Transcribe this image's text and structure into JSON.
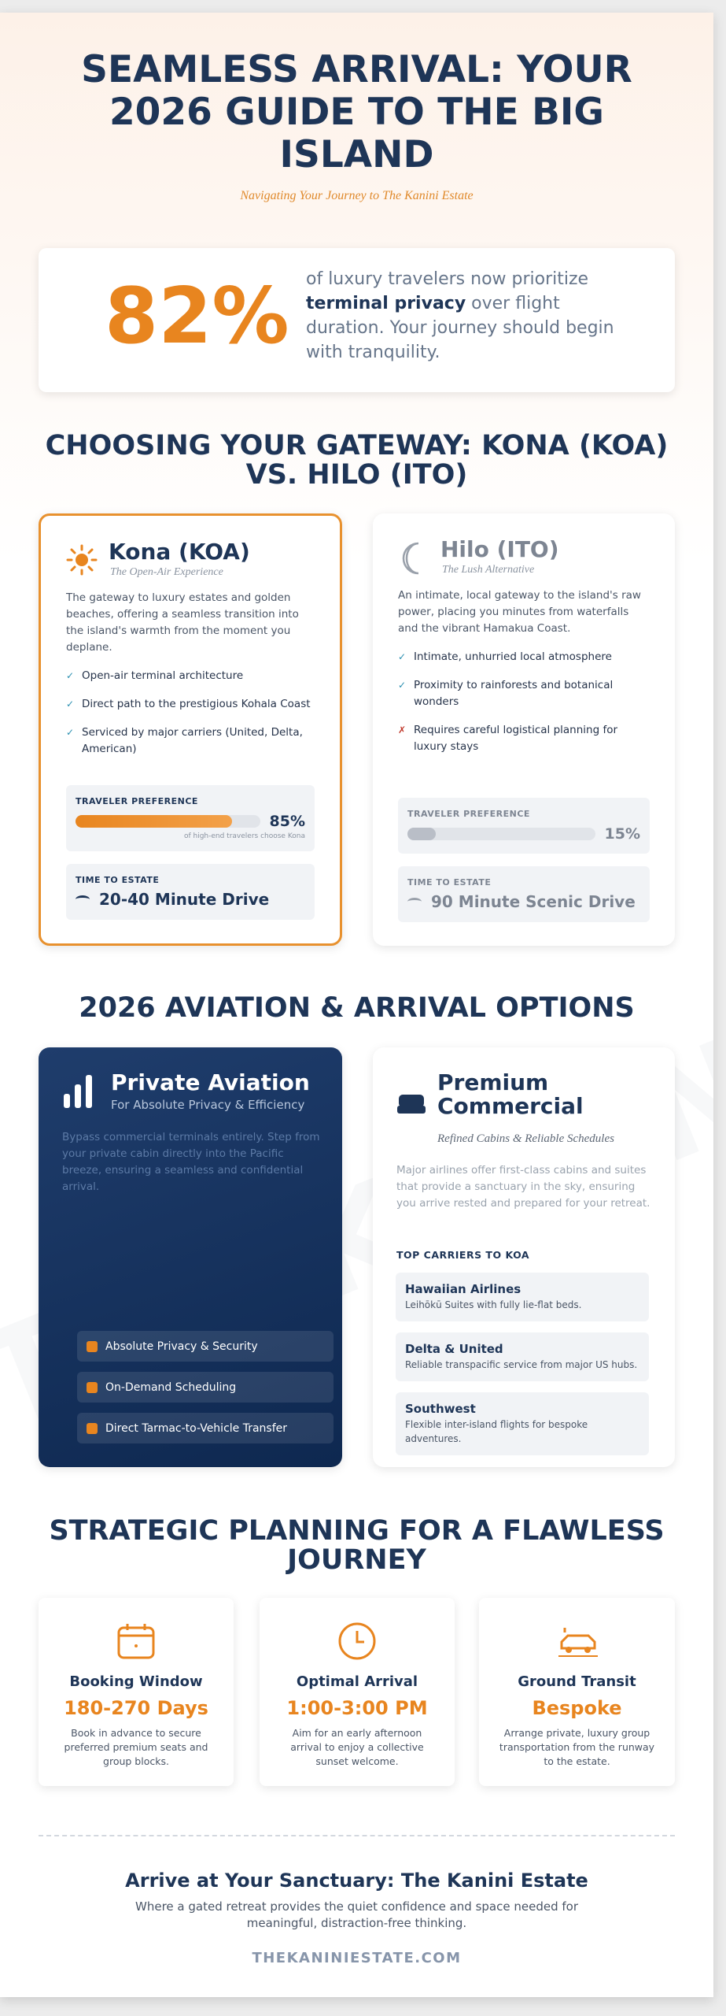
{
  "watermark": "THE KANINI ESTATE",
  "header": {
    "title": "SEAMLESS ARRIVAL: YOUR 2026 GUIDE TO THE BIG ISLAND",
    "subtitle": "Navigating Your Journey to The Kanini Estate"
  },
  "stat": {
    "value": "82%",
    "text_before": "of luxury travelers now prioritize",
    "emphasis": "terminal privacy",
    "text_after": "over flight duration. Your journey should begin with tranquility."
  },
  "gateway": {
    "heading": "CHOOSING YOUR GATEWAY: KONA (KOA) VS. HILO (ITO)",
    "airports": [
      {
        "name": "Kona (KOA)",
        "tagline": "The Open-Air Experience",
        "description": "The gateway to luxury estates and golden beaches, offering a seamless transition into the island's warmth from the moment you deplane.",
        "features": [
          {
            "text": "Open-air terminal architecture",
            "positive": true
          },
          {
            "text": "Direct path to the prestigious Kohala Coast",
            "positive": true
          },
          {
            "text": "Serviced by major carriers (United, Delta, American)",
            "positive": true
          }
        ],
        "preference_label": "TRAVELER PREFERENCE",
        "preference": "85%",
        "preference_note": "of high-end travelers choose Kona",
        "time_label": "TIME TO ESTATE",
        "time": "20-40 Minute Drive"
      },
      {
        "name": "Hilo (ITO)",
        "tagline": "The Lush Alternative",
        "description": "An intimate, local gateway to the island's raw power, placing you minutes from waterfalls and the vibrant Hamakua Coast.",
        "features": [
          {
            "text": "Intimate, unhurried local atmosphere",
            "positive": true
          },
          {
            "text": "Proximity to rainforests and botanical wonders",
            "positive": true
          },
          {
            "text": "Requires careful logistical planning for luxury stays",
            "positive": false
          }
        ],
        "preference_label": "TRAVELER PREFERENCE",
        "preference": "15%",
        "time_label": "TIME TO ESTATE",
        "time": "90 Minute Scenic Drive"
      }
    ]
  },
  "options": {
    "heading": "2026 AVIATION & ARRIVAL OPTIONS",
    "private": {
      "title": "Private Aviation",
      "subtitle": "For Absolute Privacy & Efficiency",
      "description": "Bypass commercial terminals entirely. Step from your private cabin directly into the Pacific breeze, ensuring a seamless and confidential arrival.",
      "features": [
        "Absolute Privacy & Security",
        "On-Demand Scheduling",
        "Direct Tarmac-to-Vehicle Transfer"
      ]
    },
    "commercial": {
      "title": "Premium Commercial",
      "subtitle": "Refined Cabins & Reliable Schedules",
      "description": "Major airlines offer first-class cabins and suites that provide a sanctuary in the sky, ensuring you arrive rested and prepared for your retreat.",
      "carriers_heading": "TOP CARRIERS TO KOA",
      "carriers": [
        {
          "name": "Hawaiian Airlines",
          "detail": "Leihōkū Suites with fully lie-flat beds."
        },
        {
          "name": "Delta & United",
          "detail": "Reliable transpacific service from major US hubs."
        },
        {
          "name": "Southwest",
          "detail": "Flexible inter-island flights for bespoke adventures."
        }
      ]
    }
  },
  "planning": {
    "heading": "STRATEGIC PLANNING FOR A FLAWLESS JOURNEY",
    "items": [
      {
        "title": "Booking Window",
        "value": "180-270 Days",
        "text": "Book in advance to secure preferred premium seats and group blocks."
      },
      {
        "title": "Optimal Arrival",
        "value": "1:00-3:00 PM",
        "text": "Aim for an early afternoon arrival to enjoy a collective sunset welcome."
      },
      {
        "title": "Ground Transit",
        "value": "Bespoke",
        "text": "Arrange private, luxury group transportation from the runway to the estate."
      }
    ]
  },
  "footer": {
    "title": "Arrive at Your Sanctuary: The Kanini Estate",
    "text": "Where a gated retreat provides the quiet confidence and space needed for meaningful, distraction-free thinking.",
    "url": "THEKANINIESTATE.COM"
  }
}
